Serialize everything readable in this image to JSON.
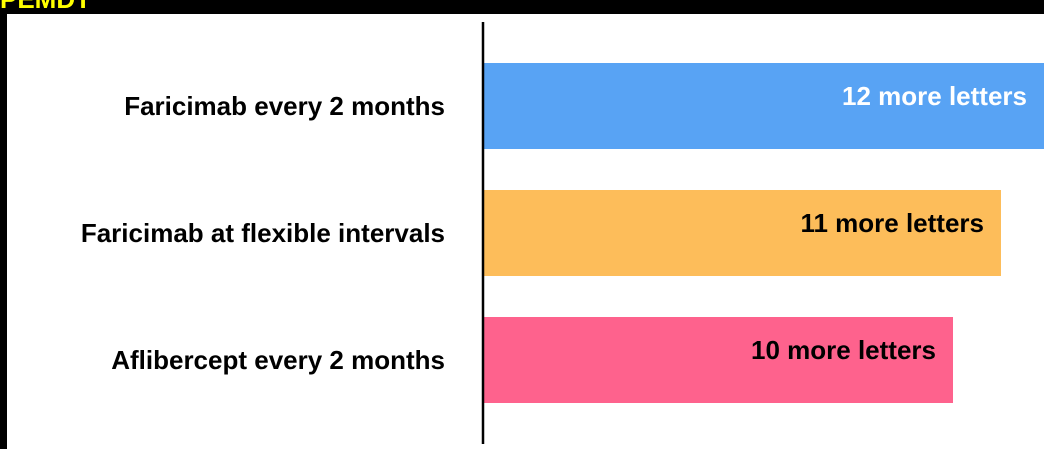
{
  "banner": {
    "text": "PEMDT",
    "color": "#ffff00"
  },
  "chart_data": {
    "type": "bar",
    "orientation": "horizontal",
    "categories": [
      "Faricimab every 2 months",
      "Faricimab at flexible intervals",
      "Aflibercept every 2 months"
    ],
    "values": [
      12,
      11,
      10
    ],
    "data_labels": [
      "12 more letters",
      "11 more letters",
      "10 more letters"
    ],
    "colors": [
      "#58a3f4",
      "#fdbd5a",
      "#fe628d"
    ],
    "label_colors": [
      "#ffffff",
      "#000000",
      "#000000"
    ],
    "xlim": [
      0,
      12
    ],
    "grid": false,
    "legend": "none",
    "title": "",
    "xlabel": "",
    "ylabel": ""
  }
}
